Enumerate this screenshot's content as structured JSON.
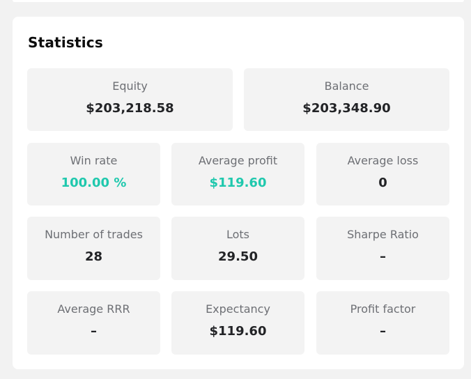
{
  "statistics": {
    "title": "Statistics",
    "equity": {
      "label": "Equity",
      "value": "$203,218.58"
    },
    "balance": {
      "label": "Balance",
      "value": "$203,348.90"
    },
    "win_rate": {
      "label": "Win rate",
      "value": "100.00 %"
    },
    "average_profit": {
      "label": "Average profit",
      "value": "$119.60"
    },
    "average_loss": {
      "label": "Average loss",
      "value": "0"
    },
    "number_of_trades": {
      "label": "Number of trades",
      "value": "28"
    },
    "lots": {
      "label": "Lots",
      "value": "29.50"
    },
    "sharpe_ratio": {
      "label": "Sharpe Ratio",
      "value": "–"
    },
    "average_rrr": {
      "label": "Average RRR",
      "value": "–"
    },
    "expectancy": {
      "label": "Expectancy",
      "value": "$119.60"
    },
    "profit_factor": {
      "label": "Profit factor",
      "value": "–"
    }
  },
  "colors": {
    "positive": "#1fc8ad",
    "tile_bg": "#f3f3f3",
    "card_bg": "#ffffff",
    "page_bg": "#f2f2f2"
  }
}
